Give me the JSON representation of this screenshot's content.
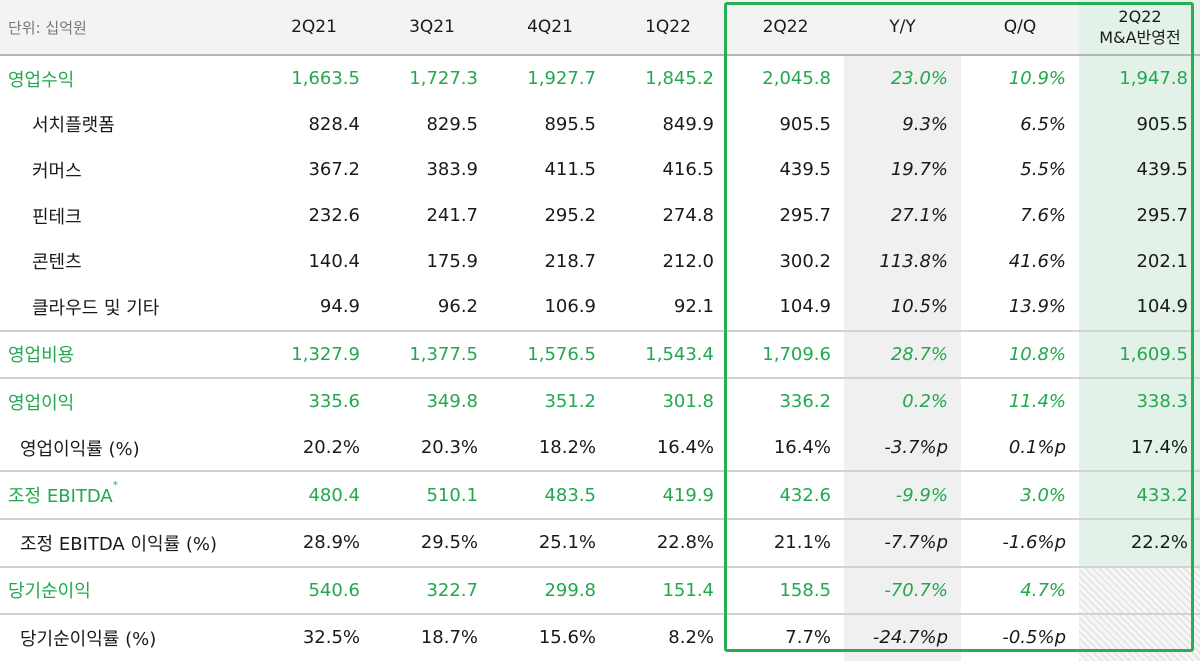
{
  "unit_label": "단위: 십억원",
  "columns": [
    "2Q21",
    "3Q21",
    "4Q21",
    "1Q22",
    "2Q22",
    "Y/Y",
    "Q/Q"
  ],
  "ma_column": [
    "2Q22",
    "M&A반영전"
  ],
  "rows": [
    {
      "label": "영업수익",
      "main": true,
      "group_start": false,
      "values": [
        "1,663.5",
        "1,727.3",
        "1,927.7",
        "1,845.2",
        "2,045.8",
        "23.0%",
        "10.9%",
        "1,947.8"
      ]
    },
    {
      "label": "서치플랫폼",
      "main": false,
      "group_start": false,
      "values": [
        "828.4",
        "829.5",
        "895.5",
        "849.9",
        "905.5",
        "9.3%",
        "6.5%",
        "905.5"
      ]
    },
    {
      "label": "커머스",
      "main": false,
      "group_start": false,
      "values": [
        "367.2",
        "383.9",
        "411.5",
        "416.5",
        "439.5",
        "19.7%",
        "5.5%",
        "439.5"
      ]
    },
    {
      "label": "핀테크",
      "main": false,
      "group_start": false,
      "values": [
        "232.6",
        "241.7",
        "295.2",
        "274.8",
        "295.7",
        "27.1%",
        "7.6%",
        "295.7"
      ]
    },
    {
      "label": "콘텐츠",
      "main": false,
      "group_start": false,
      "values": [
        "140.4",
        "175.9",
        "218.7",
        "212.0",
        "300.2",
        "113.8%",
        "41.6%",
        "202.1"
      ]
    },
    {
      "label": "클라우드 및 기타",
      "main": false,
      "group_start": false,
      "values": [
        "94.9",
        "96.2",
        "106.9",
        "92.1",
        "104.9",
        "10.5%",
        "13.9%",
        "104.9"
      ]
    },
    {
      "label": "영업비용",
      "main": true,
      "group_start": true,
      "values": [
        "1,327.9",
        "1,377.5",
        "1,576.5",
        "1,543.4",
        "1,709.6",
        "28.7%",
        "10.8%",
        "1,609.5"
      ]
    },
    {
      "label": "영업이익",
      "main": true,
      "group_start": true,
      "values": [
        "335.6",
        "349.8",
        "351.2",
        "301.8",
        "336.2",
        "0.2%",
        "11.4%",
        "338.3"
      ]
    },
    {
      "label": "영업이익률 (%)",
      "main": false,
      "group_start": false,
      "values": [
        "20.2%",
        "20.3%",
        "18.2%",
        "16.4%",
        "16.4%",
        "-3.7%p",
        "0.1%p",
        "17.4%"
      ]
    },
    {
      "label": "조정 EBITDA",
      "sup": "*",
      "main": true,
      "group_start": true,
      "values": [
        "480.4",
        "510.1",
        "483.5",
        "419.9",
        "432.6",
        "-9.9%",
        "3.0%",
        "433.2"
      ]
    },
    {
      "label": "조정 EBITDA 이익률 (%)",
      "main": false,
      "group_start": true,
      "values": [
        "28.9%",
        "29.5%",
        "25.1%",
        "22.8%",
        "21.1%",
        "-7.7%p",
        "-1.6%p",
        "22.2%"
      ]
    },
    {
      "label": "당기순이익",
      "main": true,
      "group_start": true,
      "values": [
        "540.6",
        "322.7",
        "299.8",
        "151.4",
        "158.5",
        "-70.7%",
        "4.7%",
        ""
      ]
    },
    {
      "label": "당기순이익률 (%)",
      "main": false,
      "group_start": true,
      "values": [
        "32.5%",
        "18.7%",
        "15.6%",
        "8.2%",
        "7.7%",
        "-24.7%p",
        "-0.5%p",
        ""
      ]
    }
  ]
}
